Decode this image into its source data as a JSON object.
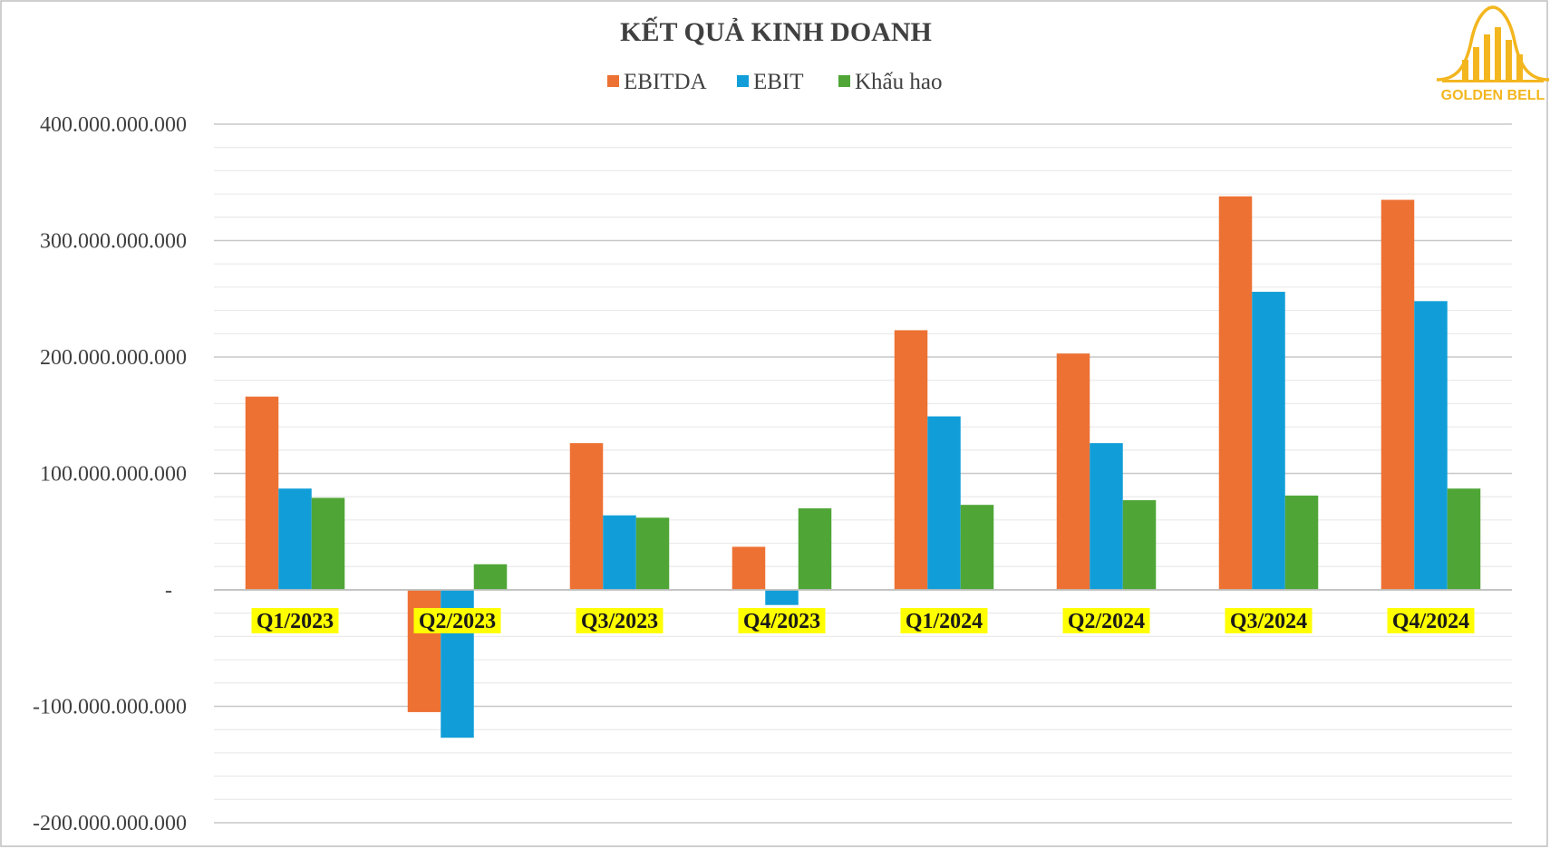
{
  "colors": {
    "EBITDA": "#ED7133",
    "EBIT": "#119ED8",
    "Khau_hao": "#4FA636",
    "highlight": "#FFFF00",
    "gridline": "#D0D0D0",
    "border": "#BFBFBF",
    "logo": "#F3B61F"
  },
  "logo": {
    "text": "GOLDEN BELL",
    "icon": "bell-chart-logo-icon"
  },
  "chart_data": {
    "type": "bar",
    "title": "KẾT QUẢ KINH DOANH",
    "xlabel": "",
    "ylabel": "",
    "categories": [
      "Q1/2023",
      "Q2/2023",
      "Q3/2023",
      "Q4/2023",
      "Q1/2024",
      "Q2/2024",
      "Q3/2024",
      "Q4/2024"
    ],
    "series": [
      {
        "name": "EBITDA",
        "colorKey": "EBITDA",
        "values": [
          166000000000,
          -105000000000,
          126000000000,
          37000000000,
          223000000000,
          203000000000,
          338000000000,
          335000000000
        ]
      },
      {
        "name": "EBIT",
        "colorKey": "EBIT",
        "values": [
          87000000000,
          -127000000000,
          64000000000,
          -13000000000,
          149000000000,
          126000000000,
          256000000000,
          248000000000
        ]
      },
      {
        "name": "Khấu hao",
        "colorKey": "Khau_hao",
        "values": [
          79000000000,
          22000000000,
          62000000000,
          70000000000,
          73000000000,
          77000000000,
          81000000000,
          87000000000
        ]
      }
    ],
    "ylim": [
      -200000000000,
      400000000000
    ],
    "yticks": [
      {
        "value": 400000000000,
        "label": "400.000.000.000"
      },
      {
        "value": 300000000000,
        "label": "300.000.000.000"
      },
      {
        "value": 200000000000,
        "label": "200.000.000.000"
      },
      {
        "value": 100000000000,
        "label": "100.000.000.000"
      },
      {
        "value": 0,
        "label": "-"
      },
      {
        "value": -100000000000,
        "label": "-100.000.000.000"
      },
      {
        "value": -200000000000,
        "label": "-200.000.000.000"
      }
    ],
    "minor_grid_step": 20000000000,
    "grid": true,
    "legend_position": "top-center"
  }
}
